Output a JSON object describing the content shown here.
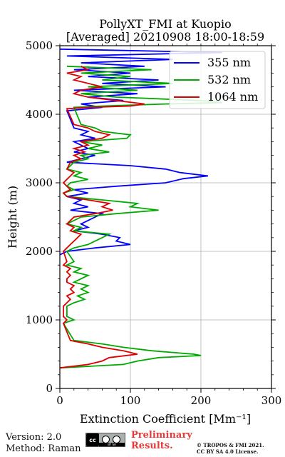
{
  "chart_data": {
    "type": "line",
    "title": "PollyXT_FMI at Kuopio",
    "subtitle": "[Averaged] 20210908 18:00-18:59",
    "xlabel": "Extinction Coefficient [Mm⁻¹]",
    "ylabel": "Height (m)",
    "xlim": [
      0,
      300
    ],
    "ylim": [
      0,
      5000
    ],
    "xticks": [
      "0",
      "100",
      "200",
      "300"
    ],
    "yticks": [
      "0",
      "1000",
      "2000",
      "3000",
      "4000",
      "5000"
    ],
    "grid": true,
    "legend_position": "top-right",
    "series": [
      {
        "name": "355 nm",
        "color": "#0000ff",
        "y": [
          4950,
          4900,
          4850,
          4800,
          4750,
          4700,
          4650,
          4600,
          4550,
          4500,
          4450,
          4400,
          4350,
          4300,
          4250,
          4200,
          4150,
          4100,
          4050,
          3800,
          3750,
          3700,
          3650,
          3600,
          3550,
          3500,
          3450,
          3400,
          3350,
          3300,
          3250,
          3200,
          3150,
          3100,
          3060,
          3000,
          2950,
          2900,
          2850,
          2800,
          2750,
          2700,
          2650,
          2600,
          2550,
          2500,
          2450,
          2400,
          2350,
          2300,
          2250,
          2200,
          2150,
          2100,
          2050,
          2000,
          1950
        ],
        "x": [
          0,
          230,
          10,
          160,
          30,
          120,
          20,
          100,
          40,
          140,
          60,
          150,
          20,
          110,
          40,
          90,
          30,
          60,
          10,
          20,
          40,
          30,
          50,
          20,
          30,
          40,
          20,
          50,
          30,
          10,
          100,
          150,
          170,
          210,
          175,
          150,
          80,
          20,
          40,
          10,
          30,
          20,
          40,
          15,
          60,
          50,
          40,
          30,
          40,
          20,
          60,
          85,
          80,
          100,
          50,
          10,
          0
        ]
      },
      {
        "name": "532 nm",
        "color": "#00aa00",
        "y": [
          4700,
          4650,
          4600,
          4550,
          4500,
          4450,
          4400,
          4350,
          4300,
          4250,
          4200,
          4170,
          4150,
          4120,
          4100,
          3850,
          3800,
          3750,
          3700,
          3650,
          3600,
          3550,
          3500,
          3450,
          3400,
          3350,
          3300,
          3200,
          3150,
          3100,
          3050,
          3000,
          2950,
          2900,
          2850,
          2800,
          2750,
          2700,
          2650,
          2600,
          2550,
          2500,
          2450,
          2400,
          2350,
          2300,
          2250,
          2200,
          2150,
          2100,
          2050,
          2000,
          1850,
          1800,
          1750,
          1700,
          1650,
          1600,
          1550,
          1500,
          1450,
          1400,
          1350,
          1300,
          1250,
          1200,
          1050,
          1000,
          950,
          700,
          650,
          600,
          550,
          500,
          480,
          450,
          400,
          350,
          300
        ],
        "x": [
          10,
          130,
          30,
          100,
          60,
          160,
          40,
          110,
          30,
          80,
          200,
          230,
          150,
          60,
          20,
          30,
          50,
          60,
          100,
          95,
          30,
          60,
          40,
          70,
          30,
          40,
          20,
          10,
          30,
          20,
          40,
          15,
          10,
          20,
          5,
          10,
          60,
          110,
          100,
          140,
          80,
          30,
          20,
          10,
          30,
          20,
          70,
          60,
          50,
          40,
          20,
          10,
          20,
          10,
          30,
          20,
          40,
          30,
          20,
          40,
          30,
          40,
          25,
          35,
          20,
          10,
          10,
          20,
          5,
          20,
          60,
          90,
          130,
          190,
          200,
          140,
          110,
          90,
          0
        ]
      },
      {
        "name": "1064 nm",
        "color": "#dd0000",
        "y": [
          4700,
          4650,
          4600,
          4550,
          4500,
          4450,
          4400,
          4350,
          4300,
          4250,
          4200,
          4150,
          4120,
          4100,
          4080,
          3850,
          3800,
          3750,
          3700,
          3650,
          3600,
          3550,
          3500,
          3450,
          3400,
          3350,
          3300,
          3200,
          3150,
          3100,
          3050,
          3000,
          2950,
          2900,
          2850,
          2800,
          2750,
          2700,
          2650,
          2600,
          2550,
          2500,
          2450,
          2400,
          2350,
          2300,
          2250,
          2200,
          2150,
          2100,
          2050,
          2000,
          1850,
          1800,
          1750,
          1700,
          1650,
          1600,
          1550,
          1500,
          1450,
          1400,
          1350,
          1300,
          1250,
          1200,
          1050,
          1000,
          950,
          700,
          650,
          600,
          550,
          500,
          450,
          400,
          350,
          300
        ],
        "x": [
          30,
          40,
          10,
          30,
          20,
          40,
          60,
          30,
          20,
          40,
          80,
          120,
          100,
          40,
          10,
          20,
          40,
          50,
          70,
          60,
          30,
          40,
          20,
          35,
          20,
          30,
          15,
          10,
          20,
          15,
          10,
          5,
          10,
          15,
          5,
          10,
          40,
          70,
          60,
          75,
          50,
          20,
          15,
          10,
          20,
          15,
          30,
          25,
          20,
          15,
          10,
          5,
          10,
          5,
          15,
          10,
          15,
          10,
          10,
          20,
          15,
          20,
          10,
          15,
          10,
          5,
          5,
          10,
          5,
          15,
          40,
          60,
          90,
          110,
          70,
          60,
          40,
          0
        ]
      }
    ]
  },
  "footer": {
    "version": "Version: 2.0",
    "method": "Method: Raman",
    "license_badge": "BY SA",
    "license_badge_left": "cc",
    "preliminary_line1": "Preliminary",
    "preliminary_line2": "Results.",
    "copyright_line1": "© TROPOS & FMI 2021.",
    "copyright_line2": "CC BY SA 4.0 License."
  }
}
